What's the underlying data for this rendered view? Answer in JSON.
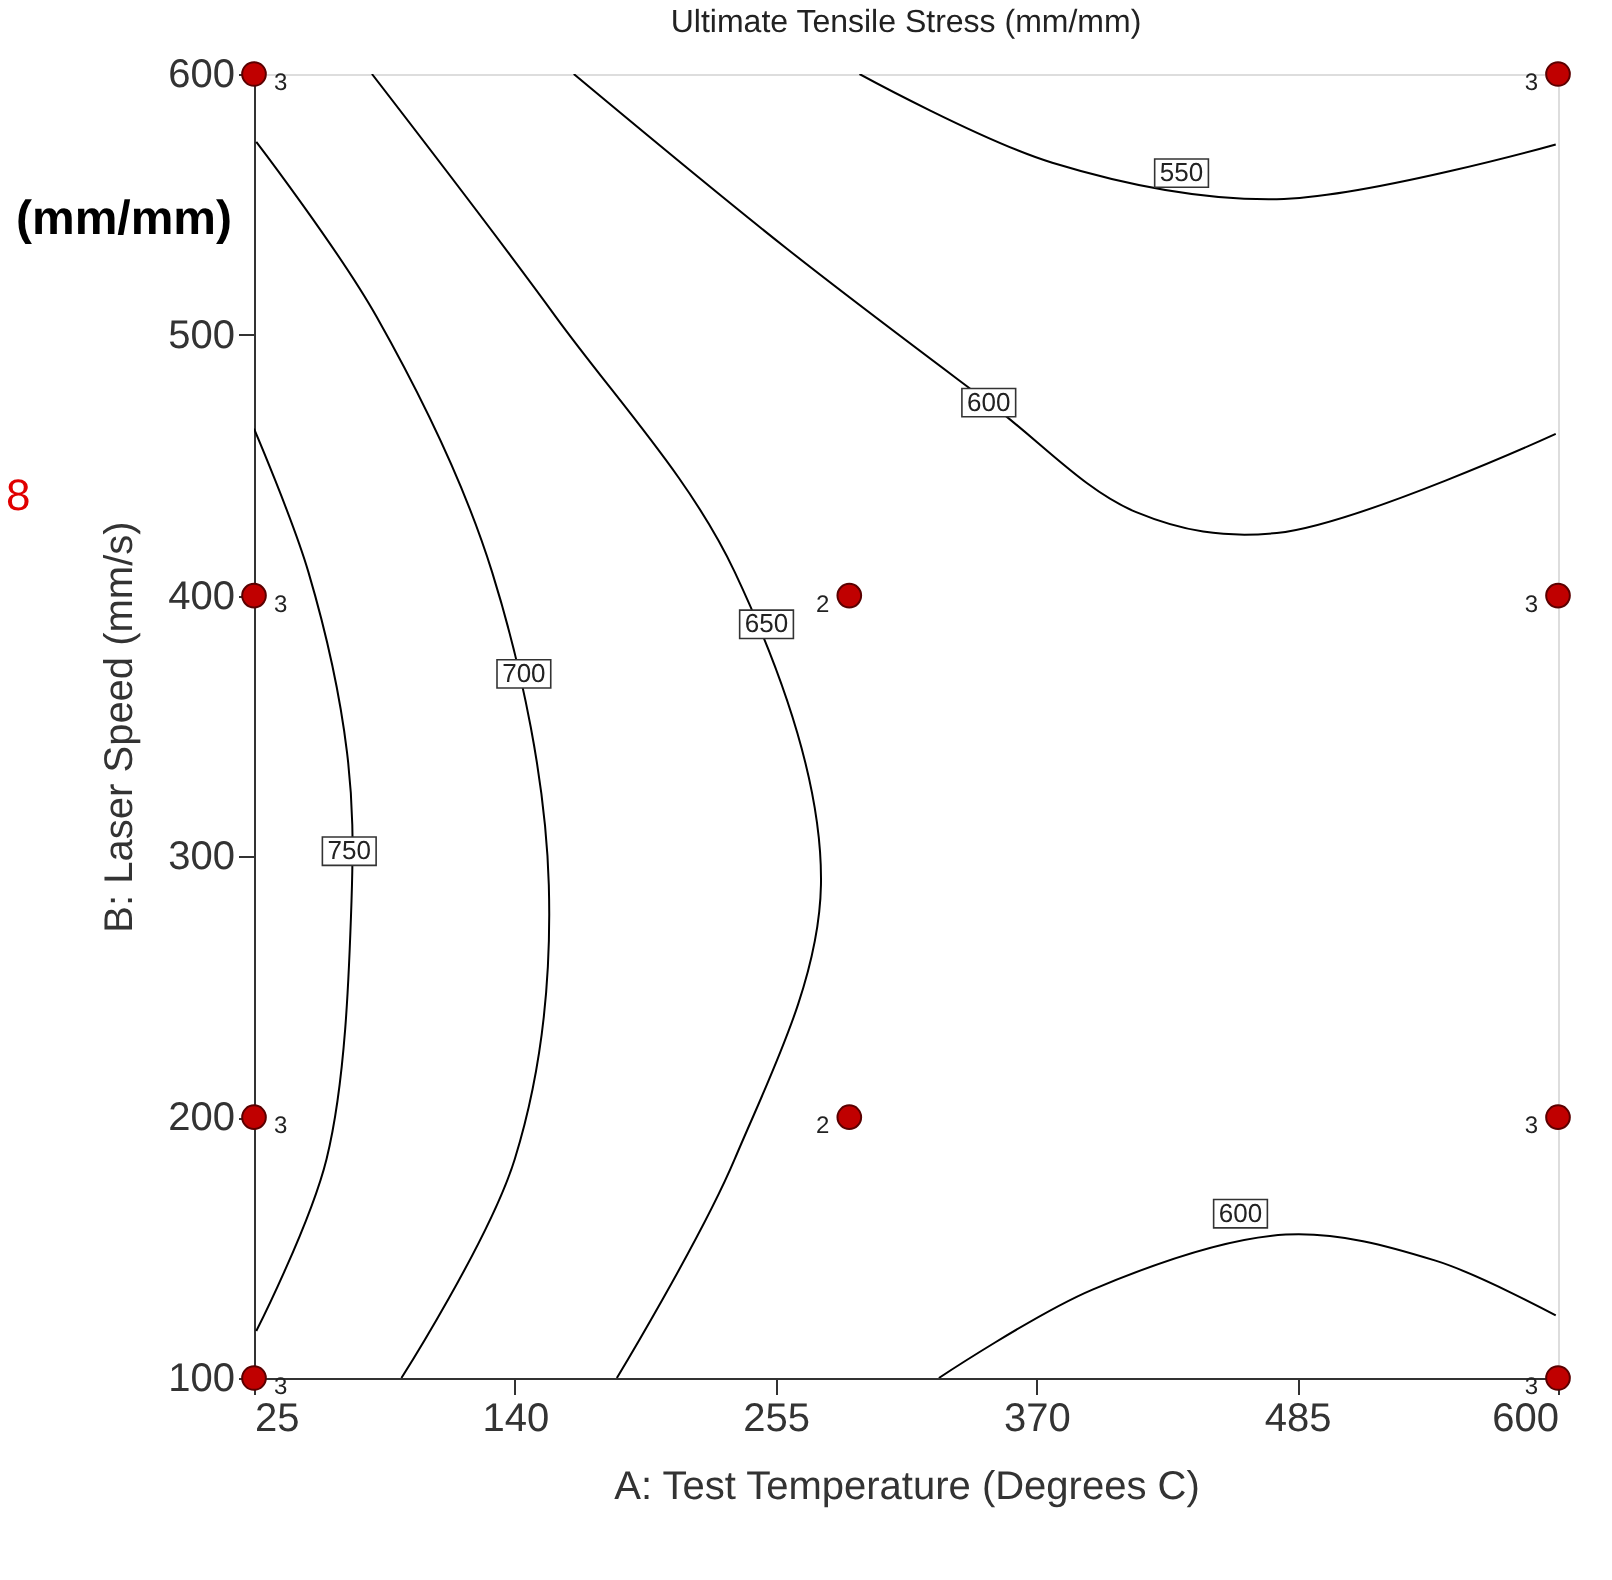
{
  "chart_data": {
    "type": "line",
    "title": "Ultimate Tensile Stress (mm/mm)",
    "xlabel": "A: Test Temperature (Degrees C)",
    "ylabel": "B: Laser Speed (mm/s)",
    "xlim": [
      25,
      600
    ],
    "ylim": [
      100,
      600
    ],
    "xticks": [
      25,
      140,
      255,
      370,
      485,
      600
    ],
    "yticks": [
      100,
      200,
      300,
      400,
      500,
      600
    ],
    "grid": false,
    "marker": "none",
    "line_style": "solid",
    "series": [
      {
        "color": "#000000",
        "x": [
          25,
          49,
          66,
          68,
          57,
          26
        ],
        "values": [
          464,
          409,
          340,
          283,
          184,
          118
        ]
      },
      {
        "color": "#000000",
        "x": [
          26,
          79,
          130,
          155,
          140,
          90
        ],
        "values": [
          574,
          507,
          409,
          289,
          184,
          100
        ]
      },
      {
        "color": "#000000",
        "x": [
          77,
          158,
          237,
          275,
          237,
          185
        ],
        "values": [
          600,
          507,
          409,
          289,
          184,
          100
        ]
      },
      {
        "color": "#000000",
        "x": [
          166,
          260,
          349,
          414,
          476,
          599
        ],
        "values": [
          600,
          533,
          474,
          432,
          424,
          462
        ]
      },
      {
        "color": "#000000",
        "x": [
          292,
          377,
          476,
          599
        ],
        "values": [
          600,
          566,
          552,
          573
        ]
      },
      {
        "color": "#000000",
        "x": [
          327,
          395,
          480,
          546,
          599
        ],
        "values": [
          100,
          134,
          155,
          145,
          124
        ]
      },
      {
        "type": "scatter",
        "color": "#c00000",
        "marker": "circle",
        "x": [
          25,
          25,
          25,
          25,
          287.5,
          287.5,
          600,
          600,
          600,
          600
        ],
        "values": [
          600,
          400,
          200,
          100,
          400,
          200,
          600,
          400,
          200,
          100
        ]
      }
    ],
    "annotations": [
      "(mm/mm)",
      "8",
      {
        "text": "550",
        "x": 434,
        "y": 562
      },
      {
        "text": "600",
        "x": 349,
        "y": 474
      },
      {
        "text": "650",
        "x": 251,
        "y": 389
      },
      {
        "text": "700",
        "x": 144,
        "y": 370
      },
      {
        "text": "750",
        "x": 67,
        "y": 302
      },
      {
        "text": "600",
        "x": 460,
        "y": 163
      },
      {
        "text": "3",
        "x": 25,
        "y": 600
      },
      {
        "text": "3",
        "x": 25,
        "y": 400
      },
      {
        "text": "3",
        "x": 25,
        "y": 200
      },
      {
        "text": "3",
        "x": 25,
        "y": 100
      },
      {
        "text": "2",
        "x": 287.5,
        "y": 400
      },
      {
        "text": "2",
        "x": 287.5,
        "y": 200
      },
      {
        "text": "3",
        "x": 600,
        "y": 600
      },
      {
        "text": "3",
        "x": 600,
        "y": 400
      },
      {
        "text": "3",
        "x": 600,
        "y": 200
      },
      {
        "text": "3",
        "x": 600,
        "y": 100
      }
    ]
  }
}
